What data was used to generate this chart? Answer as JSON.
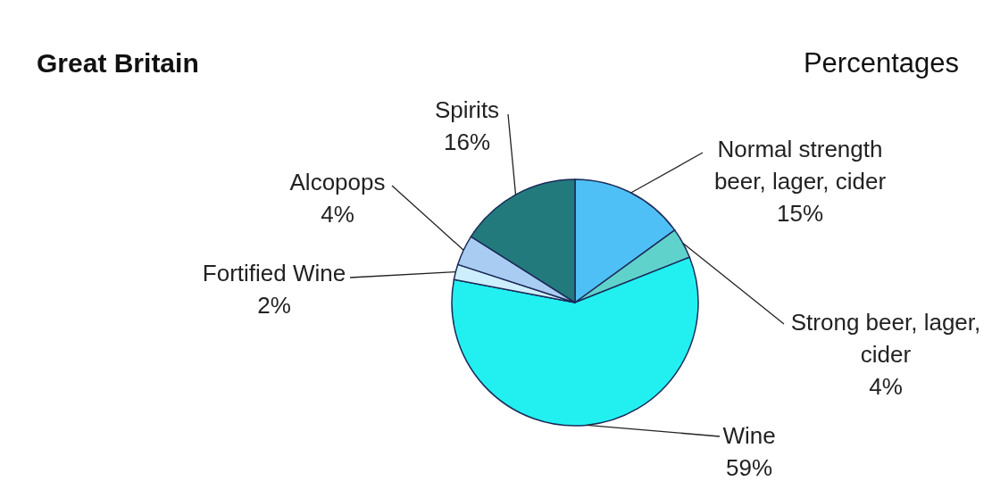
{
  "chart_data": {
    "type": "pie",
    "title": "Great Britain",
    "subtitle": "Percentages",
    "categories": [
      "Normal strength beer, lager, cider",
      "Strong beer, lager, cider",
      "Wine",
      "Fortified Wine",
      "Alcopops",
      "Spirits"
    ],
    "values": [
      15,
      4,
      59,
      2,
      4,
      16
    ],
    "value_labels": [
      "15%",
      "4%",
      "59%",
      "2%",
      "4%",
      "16%"
    ],
    "colors": [
      "#4fc0f5",
      "#5fd2cc",
      "#22f0f0",
      "#cdeefc",
      "#a9cdf2",
      "#237a7c"
    ]
  }
}
